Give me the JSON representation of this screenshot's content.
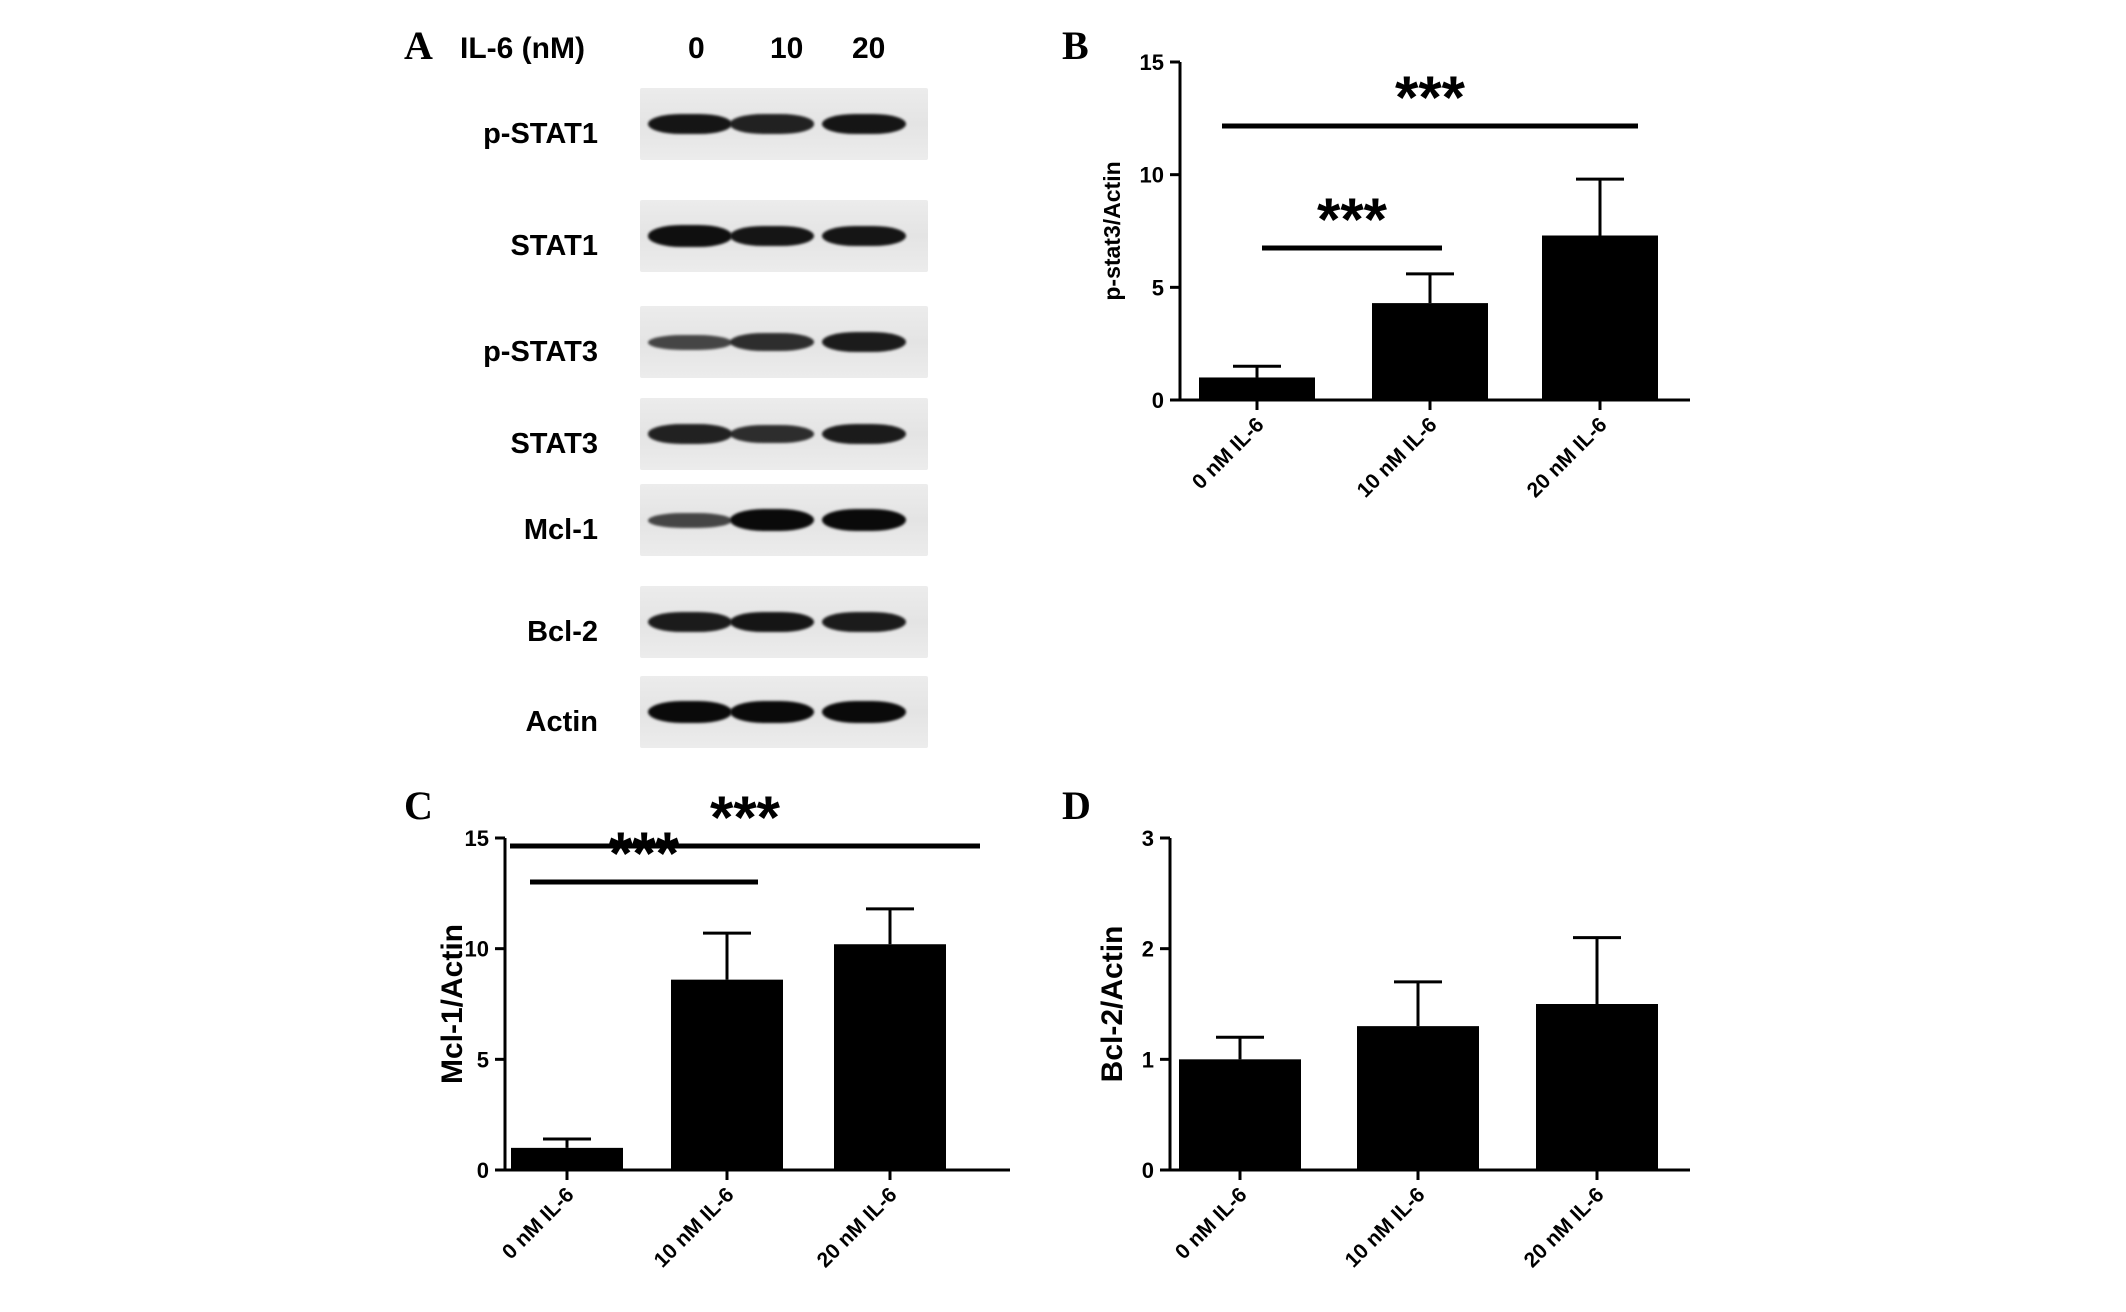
{
  "panels": {
    "a": "A",
    "b": "B",
    "c": "C",
    "d": "D"
  },
  "blot": {
    "header_label": "IL-6  (nM)",
    "lanes": [
      "0",
      "10",
      "20"
    ],
    "proteins": [
      {
        "label": "p-STAT1",
        "bands": [
          0.9,
          0.8,
          0.9
        ]
      },
      {
        "label": "STAT1",
        "bands": [
          0.95,
          0.9,
          0.9
        ]
      },
      {
        "label": "p-STAT3",
        "bands": [
          0.5,
          0.7,
          0.85
        ]
      },
      {
        "label": "STAT3",
        "bands": [
          0.8,
          0.7,
          0.85
        ]
      },
      {
        "label": "Mcl-1",
        "bands": [
          0.5,
          1.0,
          1.0
        ]
      },
      {
        "label": "Bcl-2",
        "bands": [
          0.85,
          0.9,
          0.85
        ]
      },
      {
        "label": "Actin",
        "bands": [
          1.0,
          1.0,
          1.0
        ]
      }
    ]
  },
  "chart_data": [
    {
      "panel": "B",
      "type": "bar",
      "categories": [
        "0 nM IL-6",
        "10 nM IL-6",
        "20 nM IL-6"
      ],
      "values": [
        1.0,
        4.3,
        7.3
      ],
      "errors": [
        0.5,
        1.3,
        2.5
      ],
      "ylabel": "p-stat3/Actin",
      "ylim": [
        0,
        15
      ],
      "yticks": [
        0,
        5,
        10,
        15
      ],
      "significance": [
        {
          "from": 0,
          "to": 1,
          "label": "***"
        },
        {
          "from": 0,
          "to": 2,
          "label": "***"
        }
      ]
    },
    {
      "panel": "C",
      "type": "bar",
      "categories": [
        "0 nM IL-6",
        "10 nM IL-6",
        "20 nM IL-6"
      ],
      "values": [
        1.0,
        8.6,
        10.2
      ],
      "errors": [
        0.4,
        2.1,
        1.6
      ],
      "ylabel": "Mcl-1/Actin",
      "ylim": [
        0,
        15
      ],
      "yticks": [
        0,
        5,
        10,
        15
      ],
      "significance": [
        {
          "from": 0,
          "to": 1,
          "label": "***"
        },
        {
          "from": 0,
          "to": 2,
          "label": "***"
        }
      ]
    },
    {
      "panel": "D",
      "type": "bar",
      "categories": [
        "0 nM IL-6",
        "10 nM IL-6",
        "20 nM IL-6"
      ],
      "values": [
        1.0,
        1.3,
        1.5
      ],
      "errors": [
        0.2,
        0.4,
        0.6
      ],
      "ylabel": "Bcl-2/Actin",
      "ylim": [
        0,
        3
      ],
      "yticks": [
        0,
        1,
        2,
        3
      ],
      "significance": []
    }
  ]
}
